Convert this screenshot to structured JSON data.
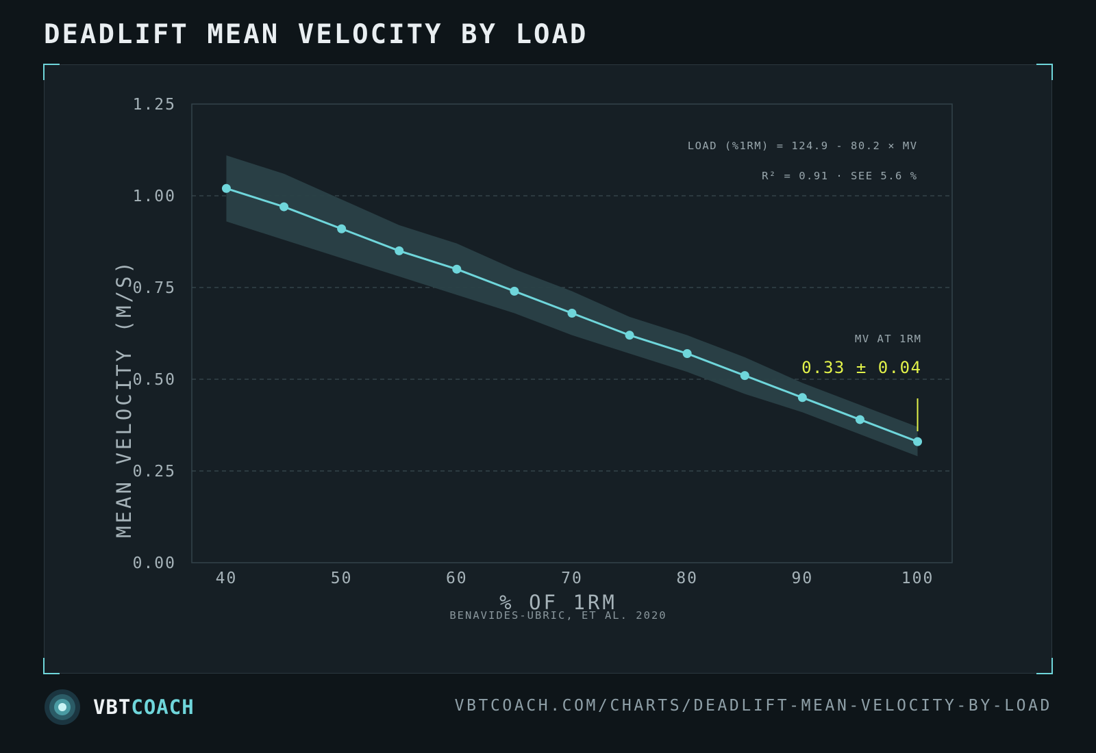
{
  "title": "DEADLIFT MEAN VELOCITY BY LOAD",
  "footer": {
    "brand_part1": "VBT",
    "brand_part2": "COACH",
    "url": "VBTCOACH.COM/CHARTS/DEADLIFT-MEAN-VELOCITY-BY-LOAD",
    "logo_icon": "concentric-circles-logo-icon"
  },
  "colors": {
    "background": "#0e1519",
    "panel": "#161f25",
    "accent": "#6fd6db",
    "band": "#2a4147",
    "highlight": "#e3f34a",
    "muted": "#8fa0a8"
  },
  "chart_data": {
    "type": "line",
    "xlabel": "% OF 1RM",
    "ylabel": "MEAN VELOCITY (M/S)",
    "source": "BENAVIDES-UBRIC, ET AL. 2020",
    "xlim": [
      37,
      103
    ],
    "ylim": [
      0,
      1.25
    ],
    "x_ticks": [
      "40",
      "50",
      "60",
      "70",
      "80",
      "90",
      "100"
    ],
    "y_ticks": [
      "0.00",
      "0.25",
      "0.50",
      "0.75",
      "1.00",
      "1.25"
    ],
    "grid": "horizontal dashed",
    "x": [
      40,
      45,
      50,
      55,
      60,
      65,
      70,
      75,
      80,
      85,
      90,
      95,
      100
    ],
    "series": [
      {
        "values": [
          1.02,
          0.97,
          0.91,
          0.85,
          0.8,
          0.74,
          0.68,
          0.62,
          0.57,
          0.51,
          0.45,
          0.39,
          0.33
        ]
      }
    ],
    "band_upper": [
      1.11,
      1.06,
      0.99,
      0.92,
      0.87,
      0.8,
      0.74,
      0.67,
      0.62,
      0.56,
      0.49,
      0.43,
      0.37
    ],
    "band_lower": [
      0.93,
      0.88,
      0.83,
      0.78,
      0.73,
      0.68,
      0.62,
      0.57,
      0.52,
      0.46,
      0.41,
      0.35,
      0.29
    ],
    "annotations": {
      "equation": "LOAD (%1RM) = 124.9 - 80.2 × MV",
      "fit_stats": "R² = 0.91 · SEE 5.6 %",
      "mv_label": "MV AT 1RM",
      "mv_value": "0.33 ± 0.04"
    }
  }
}
